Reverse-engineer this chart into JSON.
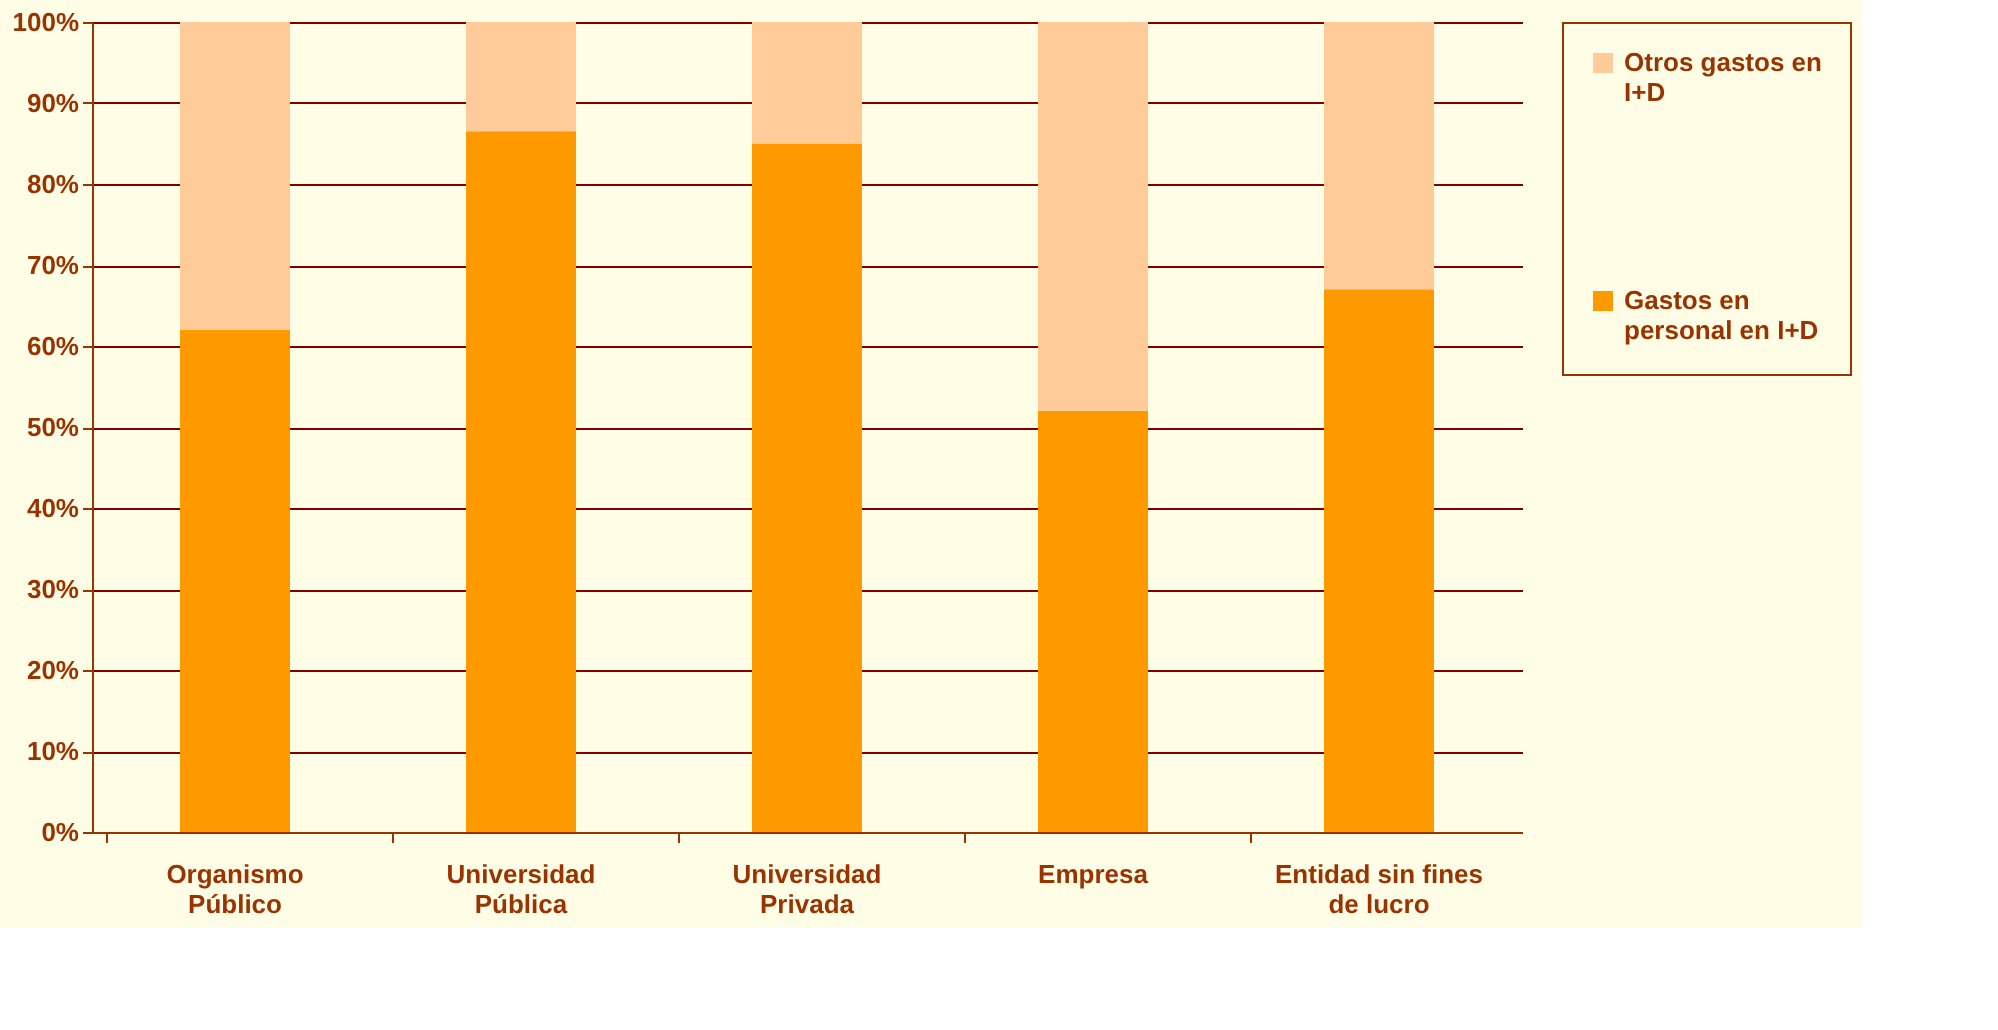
{
  "chart_data": {
    "type": "bar",
    "stacked": true,
    "categories": [
      "Organismo\nPúblico",
      "Universidad\nPública",
      "Universidad\nPrivada",
      "Empresa",
      "Entidad sin fines\nde lucro"
    ],
    "series": [
      {
        "name": "Gastos en\npersonal en I+D",
        "color": "#ff9900",
        "values": [
          62,
          86.5,
          85,
          52,
          67
        ]
      },
      {
        "name": "Otros gastos en\nI+D",
        "color": "#ffcc99",
        "values": [
          38,
          13.5,
          15,
          48,
          33
        ]
      }
    ],
    "ylim": [
      0,
      100
    ],
    "yticks": [
      {
        "value": 0,
        "label": "0%"
      },
      {
        "value": 10,
        "label": "10%"
      },
      {
        "value": 20,
        "label": "20%"
      },
      {
        "value": 30,
        "label": "30%"
      },
      {
        "value": 40,
        "label": "40%"
      },
      {
        "value": 50,
        "label": "50%"
      },
      {
        "value": 60,
        "label": "60%"
      },
      {
        "value": 70,
        "label": "70%"
      },
      {
        "value": 80,
        "label": "80%"
      },
      {
        "value": 90,
        "label": "90%"
      },
      {
        "value": 100,
        "label": "100%"
      }
    ],
    "grid": "y",
    "legend": "right"
  }
}
